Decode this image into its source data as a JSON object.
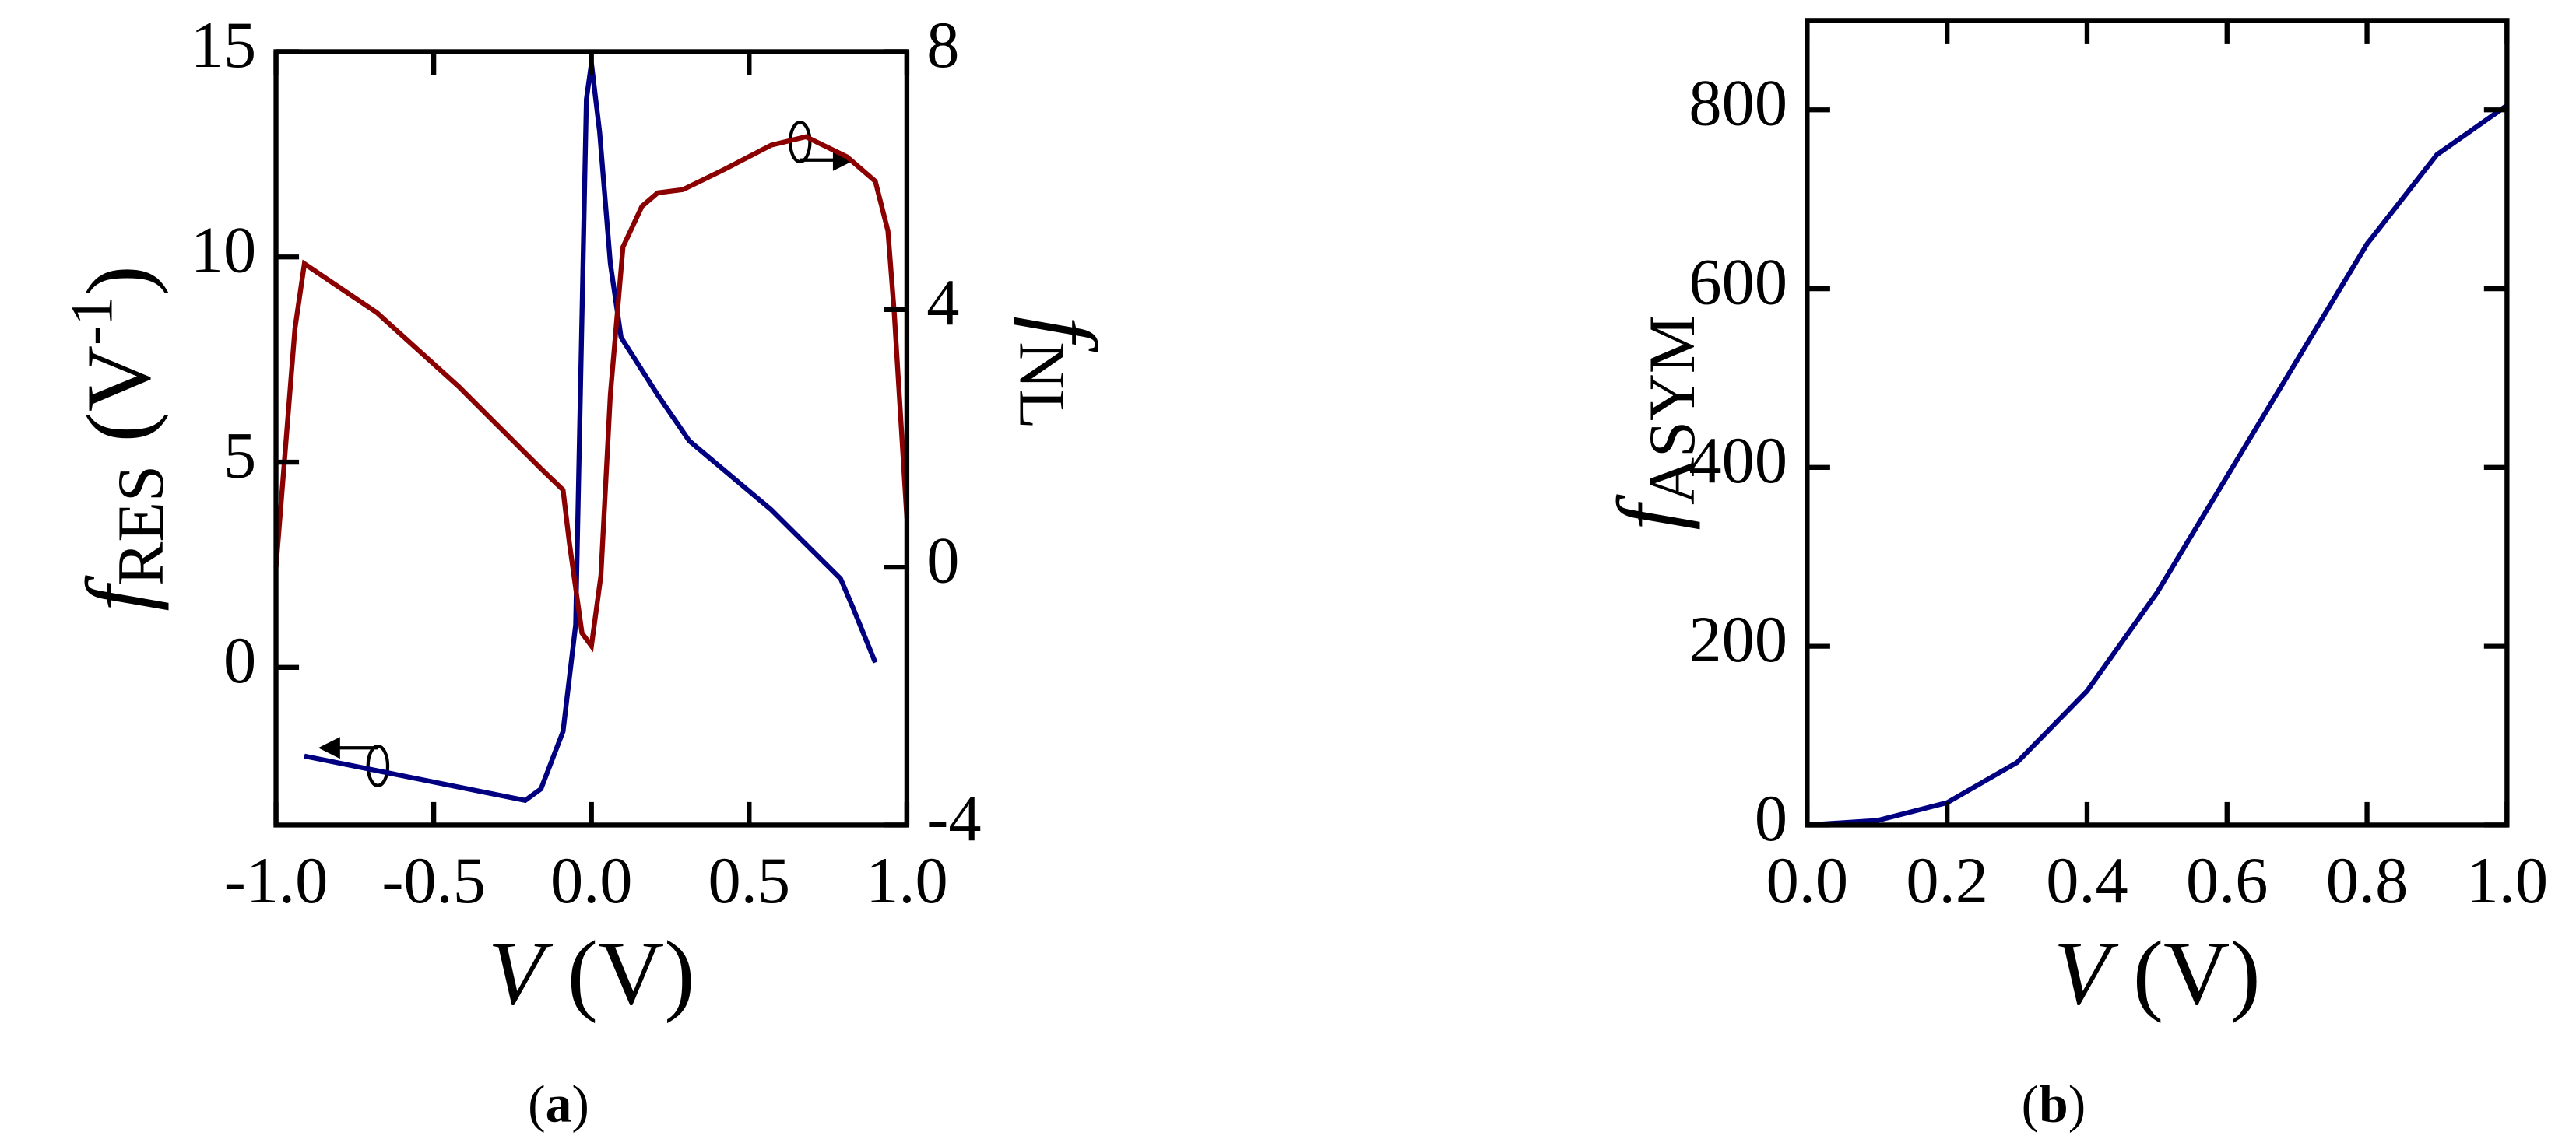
{
  "chart_data": [
    {
      "type": "line",
      "xlabel_parts": [
        "V",
        " (V)"
      ],
      "ylabel_parts": [
        "f",
        "RES",
        " (V",
        "-1",
        ")"
      ],
      "y2label_parts": [
        "f",
        "NL"
      ],
      "caption_parts": [
        "(",
        "a",
        ")"
      ],
      "xlim": [
        -1,
        1
      ],
      "xticks": [
        {
          "value": -1,
          "label": "-1.0"
        },
        {
          "value": -0.5,
          "label": "-0.5"
        },
        {
          "value": 0,
          "label": "0.0"
        },
        0.5,
        {
          "value": 1,
          "label": "1.0"
        }
      ],
      "ylim": [
        -3.84,
        15
      ],
      "yticks": [
        0,
        5,
        10,
        15
      ],
      "y2lim": [
        -4,
        8
      ],
      "y2ticks": [
        -4,
        0,
        4,
        8
      ],
      "series": [
        {
          "color": "#000080",
          "axis": "y",
          "x": [
            -0.91,
            -0.21,
            -0.16,
            -0.09,
            -0.05,
            -0.016,
            0,
            0.026,
            0.06,
            0.094,
            0.21,
            0.31,
            0.57,
            0.79,
            0.83,
            0.9
          ],
          "values": [
            -2.16,
            -3.24,
            -2.96,
            -1.56,
            1.04,
            13.84,
            14.72,
            13.04,
            9.84,
            8.04,
            6.64,
            5.52,
            3.84,
            2.16,
            1.44,
            0.12
          ]
        },
        {
          "color": "#8b0000",
          "axis": "y2",
          "x": [
            -1,
            -0.94,
            -0.91,
            -0.68,
            -0.42,
            -0.16,
            -0.09,
            -0.07,
            -0.03,
            0,
            0.03,
            0.06,
            0.1,
            0.16,
            0.21,
            0.29,
            0.42,
            0.57,
            0.68,
            0.81,
            0.9,
            0.94,
            0.96,
            1
          ],
          "values": [
            0,
            3.7,
            4.71,
            3.95,
            2.8,
            1.53,
            1.2,
            0.38,
            -1.02,
            -1.22,
            -0.13,
            2.68,
            4.97,
            5.6,
            5.81,
            5.86,
            6.17,
            6.55,
            6.68,
            6.37,
            5.99,
            5.22,
            3.95,
            0.76
          ]
        }
      ]
    },
    {
      "type": "line",
      "xlabel_parts": [
        "V",
        " (V)"
      ],
      "ylabel_parts": [
        "f",
        "ASYM"
      ],
      "caption_parts": [
        "(",
        "b",
        ")"
      ],
      "xlim": [
        0,
        1
      ],
      "xticks": [
        {
          "value": 0,
          "label": "0.0"
        },
        0.2,
        0.4,
        0.6,
        0.8,
        {
          "value": 1,
          "label": "1.0"
        }
      ],
      "ylim": [
        0,
        900
      ],
      "yticks": [
        0,
        200,
        400,
        600,
        800
      ],
      "series": [
        {
          "color": "#000080",
          "axis": "y",
          "x": [
            0,
            0.1,
            0.2,
            0.3,
            0.4,
            0.5,
            0.6,
            0.7,
            0.8,
            0.9,
            1
          ],
          "values": [
            0,
            5,
            25,
            70,
            150,
            260,
            390,
            520,
            650,
            750,
            805
          ]
        }
      ]
    }
  ]
}
